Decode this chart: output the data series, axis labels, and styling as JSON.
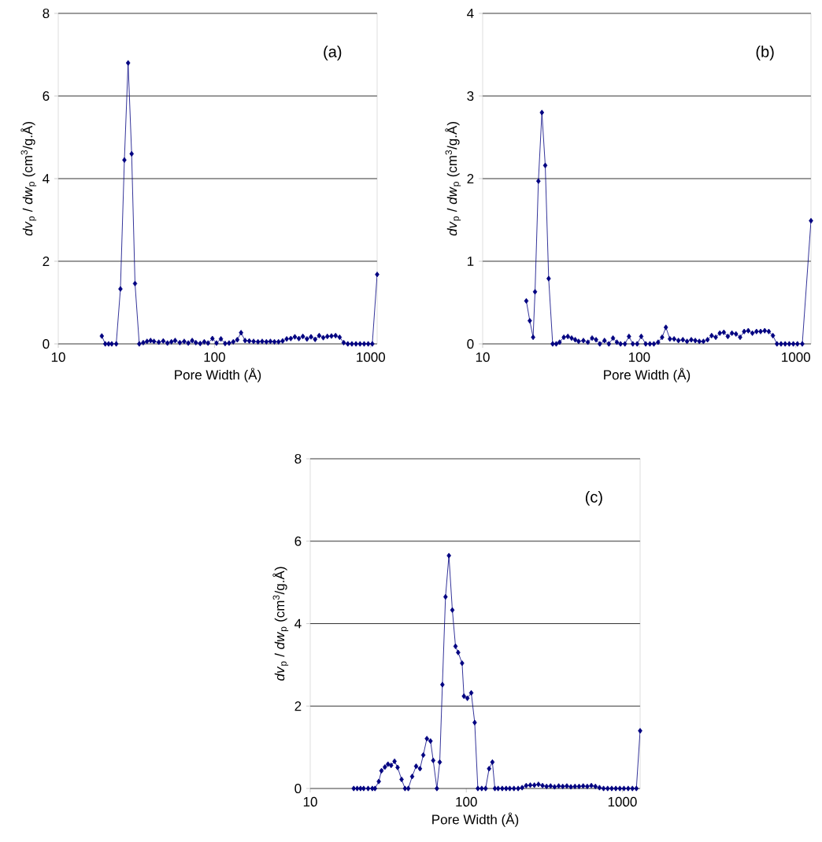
{
  "chart_data": [
    {
      "type": "line",
      "xlabel": "Pore Width (Å)",
      "ylabel": "*dv*$_{p}$ / *dw*$_{p}$ (cm$^{3}$/g.Å)",
      "annotations": [
        "(a)"
      ],
      "log": "x",
      "grid": "y",
      "marker": "diamond",
      "line_style": "solid",
      "xlim": [
        10,
        1100
      ],
      "xticks": [
        10,
        100,
        1000
      ],
      "ylim": [
        0,
        8
      ],
      "yticks": [
        0,
        2,
        4,
        6,
        8
      ],
      "x": [
        19,
        20,
        21,
        22,
        23.5,
        25,
        26.5,
        28,
        29.5,
        31,
        33,
        35,
        37,
        39,
        41,
        44,
        47,
        50,
        53,
        56,
        60,
        64,
        68,
        72,
        76,
        81,
        86,
        91,
        97,
        103,
        110,
        117,
        124,
        132,
        140,
        148,
        157,
        167,
        178,
        190,
        202,
        215,
        228,
        242,
        257,
        273,
        290,
        308,
        327,
        347,
        368,
        391,
        415,
        441,
        468,
        497,
        528,
        561,
        596,
        633,
        672,
        714,
        758,
        805,
        855,
        908,
        964,
        1024,
        1100
      ],
      "series": [
        {
          "color": "#000080",
          "values": [
            0.19,
            0,
            0,
            0,
            0,
            1.33,
            4.45,
            6.8,
            4.6,
            1.46,
            0,
            0.03,
            0.06,
            0.08,
            0.06,
            0.04,
            0.07,
            0.02,
            0.05,
            0.08,
            0.03,
            0.06,
            0.02,
            0.08,
            0.03,
            0.01,
            0.05,
            0.02,
            0.13,
            0.02,
            0.12,
            0.01,
            0.02,
            0.05,
            0.1,
            0.27,
            0.08,
            0.07,
            0.06,
            0.05,
            0.06,
            0.05,
            0.06,
            0.05,
            0.05,
            0.07,
            0.12,
            0.13,
            0.17,
            0.13,
            0.18,
            0.12,
            0.17,
            0.11,
            0.2,
            0.15,
            0.18,
            0.19,
            0.2,
            0.16,
            0.03,
            0,
            0,
            0,
            0,
            0,
            0,
            0,
            1.68
          ]
        }
      ]
    },
    {
      "type": "line",
      "xlabel": "Pore Width (Å)",
      "ylabel": "*dv*$_{p}$ / *dw*$_{p}$ (cm$^{3}$/g.Å)",
      "annotations": [
        "(b)"
      ],
      "log": "x",
      "grid": "y",
      "marker": "diamond",
      "line_style": "solid",
      "xlim": [
        10,
        1250
      ],
      "xticks": [
        10,
        100,
        1000
      ],
      "ylim": [
        0,
        4
      ],
      "yticks": [
        0,
        1,
        2,
        3,
        4
      ],
      "x": [
        19,
        20,
        21,
        21.6,
        22.7,
        23.9,
        25.1,
        26.4,
        28,
        29.5,
        31,
        33,
        35,
        37,
        39,
        41,
        44,
        47,
        50,
        53,
        56,
        60,
        64,
        68,
        72,
        76,
        81,
        86,
        91,
        97,
        103,
        110,
        117,
        124,
        132,
        140,
        148,
        157,
        167,
        178,
        190,
        202,
        215,
        228,
        242,
        257,
        273,
        290,
        308,
        327,
        347,
        368,
        391,
        415,
        441,
        468,
        497,
        528,
        561,
        596,
        633,
        672,
        714,
        758,
        805,
        855,
        908,
        964,
        1024,
        1100,
        1250
      ],
      "series": [
        {
          "color": "#000080",
          "values": [
            0.52,
            0.28,
            0.08,
            0.63,
            1.97,
            2.8,
            2.16,
            0.79,
            0,
            0,
            0.02,
            0.08,
            0.09,
            0.07,
            0.05,
            0.03,
            0.04,
            0.02,
            0.07,
            0.05,
            0,
            0.04,
            0,
            0.07,
            0.02,
            0,
            0,
            0.09,
            0,
            0,
            0.09,
            0,
            0,
            0,
            0.02,
            0.08,
            0.2,
            0.06,
            0.06,
            0.04,
            0.05,
            0.03,
            0.05,
            0.04,
            0.03,
            0.03,
            0.05,
            0.1,
            0.08,
            0.13,
            0.14,
            0.09,
            0.13,
            0.12,
            0.08,
            0.15,
            0.16,
            0.13,
            0.15,
            0.15,
            0.16,
            0.15,
            0.1,
            0,
            0,
            0,
            0,
            0,
            0,
            0,
            1.49
          ]
        }
      ]
    },
    {
      "type": "line",
      "xlabel": "Pore Width (Å)",
      "ylabel": "*dv*$_{p}$ / *dw*$_{p}$ (cm$^{3}$/g.Å)",
      "annotations": [
        "(c)"
      ],
      "log": "x",
      "grid": "y",
      "marker": "diamond",
      "line_style": "solid",
      "xlim": [
        10,
        1300
      ],
      "xticks": [
        10,
        100,
        1000
      ],
      "ylim": [
        0,
        8
      ],
      "yticks": [
        0,
        2,
        4,
        6,
        8
      ],
      "x": [
        19,
        20,
        21,
        22,
        23.5,
        25,
        26,
        27.5,
        28.6,
        30.1,
        31.5,
        33,
        34.7,
        36.3,
        38.5,
        40.5,
        42.5,
        45,
        47.7,
        50.5,
        53,
        55.9,
        59,
        61.4,
        64.8,
        67.6,
        70.3,
        73.6,
        77.4,
        81.4,
        85.3,
        88.7,
        94,
        96.6,
        101.6,
        107.6,
        113.2,
        118.6,
        125.6,
        133,
        140,
        147,
        152.5,
        160,
        170,
        180,
        190,
        202,
        215,
        228,
        242,
        257,
        273,
        290,
        308,
        327,
        347,
        368,
        391,
        415,
        441,
        468,
        497,
        528,
        561,
        596,
        633,
        672,
        714,
        758,
        805,
        855,
        908,
        964,
        1024,
        1090,
        1160,
        1230,
        1300
      ],
      "series": [
        {
          "color": "#000080",
          "values": [
            0,
            0,
            0,
            0,
            0,
            0,
            0,
            0.17,
            0.43,
            0.52,
            0.59,
            0.56,
            0.66,
            0.51,
            0.22,
            0,
            0,
            0.29,
            0.54,
            0.48,
            0.81,
            1.21,
            1.15,
            0.68,
            0,
            0.64,
            2.52,
            4.65,
            5.65,
            4.33,
            3.45,
            3.3,
            3.04,
            2.24,
            2.19,
            2.32,
            1.6,
            0,
            0,
            0,
            0.48,
            0.64,
            0,
            0,
            0,
            0,
            0,
            0,
            0,
            0.02,
            0.07,
            0.08,
            0.08,
            0.1,
            0.07,
            0.05,
            0.06,
            0.04,
            0.06,
            0.05,
            0.06,
            0.04,
            0.05,
            0.05,
            0.06,
            0.05,
            0.07,
            0.05,
            0.02,
            0,
            0,
            0,
            0,
            0,
            0,
            0,
            0,
            0,
            1.4
          ]
        }
      ]
    }
  ]
}
